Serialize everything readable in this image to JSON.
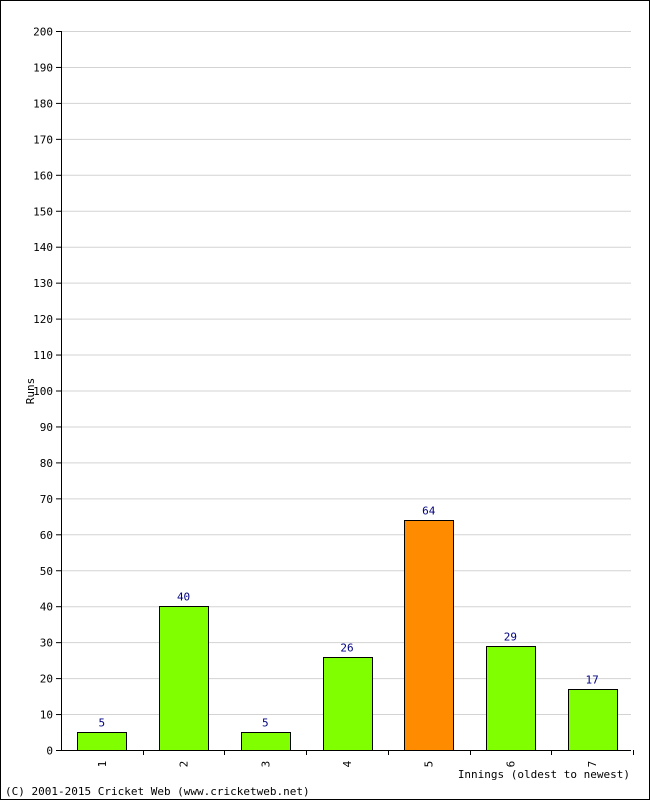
{
  "chart_data": {
    "type": "bar",
    "categories": [
      "1",
      "2",
      "3",
      "4",
      "5",
      "6",
      "7"
    ],
    "values": [
      5,
      40,
      5,
      26,
      64,
      29,
      17
    ],
    "highlight_index": 4,
    "xlabel": "Innings (oldest to newest)",
    "ylabel": "Runs",
    "ylim": [
      0,
      200
    ],
    "ytick_step": 10,
    "grid": true,
    "colors": {
      "bar": "#7fff00",
      "highlight": "#ff8c00",
      "bar_stroke": "#000000",
      "grid": "#d3d3d3",
      "data_label": "#000080"
    }
  },
  "footer": {
    "copyright": "(C) 2001-2015 Cricket Web (www.cricketweb.net)"
  }
}
